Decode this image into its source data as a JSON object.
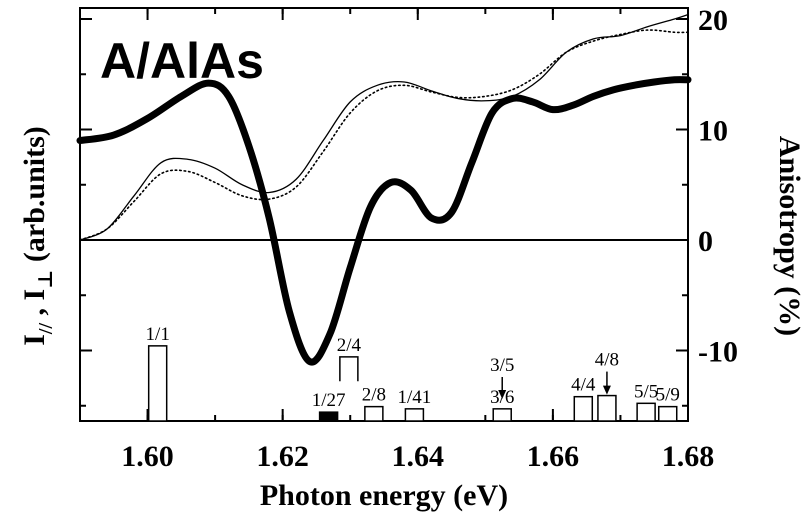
{
  "chart_data": {
    "type": "line",
    "title": "A/AlAs",
    "xlabel": "Photon energy (eV)",
    "ylabel_left_parts": [
      "I",
      "//",
      " , I",
      "⊥",
      " (arb.units)"
    ],
    "ylabel_right": "Anisotropy (%)",
    "xlim": [
      1.59,
      1.68
    ],
    "ylim_right": [
      -18,
      21
    ],
    "x_ticks": [
      1.6,
      1.62,
      1.64,
      1.66,
      1.68
    ],
    "x_tick_labels": [
      "1.60",
      "1.62",
      "1.64",
      "1.66",
      "1.68"
    ],
    "y_ticks_right": [
      -10,
      0,
      10,
      20
    ],
    "y_tick_labels_right": [
      "-10",
      "0",
      "10",
      "20"
    ],
    "series": [
      {
        "style": "thick-solid",
        "axis": "right",
        "x": [
          1.59,
          1.595,
          1.6,
          1.605,
          1.609,
          1.612,
          1.615,
          1.618,
          1.621,
          1.624,
          1.627,
          1.63,
          1.633,
          1.636,
          1.639,
          1.642,
          1.645,
          1.648,
          1.651,
          1.654,
          1.657,
          1.66,
          1.663,
          1.666,
          1.669,
          1.672,
          1.675,
          1.678,
          1.68
        ],
        "y": [
          9.0,
          9.5,
          11.0,
          13.0,
          14.2,
          13.0,
          8.5,
          2.0,
          -6.5,
          -11.0,
          -8.5,
          -2.5,
          3.0,
          5.2,
          4.5,
          2.0,
          2.5,
          7.0,
          11.5,
          12.8,
          12.5,
          11.8,
          12.2,
          13.0,
          13.6,
          14.0,
          14.3,
          14.5,
          14.5
        ]
      },
      {
        "style": "thin-solid",
        "axis": "right",
        "x": [
          1.59,
          1.594,
          1.598,
          1.602,
          1.606,
          1.61,
          1.614,
          1.618,
          1.622,
          1.626,
          1.63,
          1.634,
          1.638,
          1.642,
          1.646,
          1.65,
          1.654,
          1.658,
          1.662,
          1.666,
          1.67,
          1.674,
          1.678,
          1.68
        ],
        "y": [
          0.0,
          1.0,
          4.0,
          7.0,
          7.3,
          6.5,
          5.0,
          4.3,
          5.5,
          9.0,
          12.5,
          14.0,
          14.3,
          13.5,
          12.8,
          12.6,
          13.0,
          14.5,
          17.0,
          18.2,
          18.5,
          19.3,
          20.0,
          20.4
        ]
      },
      {
        "style": "dotted",
        "axis": "right",
        "x": [
          1.59,
          1.594,
          1.598,
          1.602,
          1.606,
          1.61,
          1.614,
          1.618,
          1.622,
          1.626,
          1.63,
          1.634,
          1.638,
          1.642,
          1.646,
          1.65,
          1.654,
          1.658,
          1.662,
          1.666,
          1.67,
          1.674,
          1.678,
          1.68
        ],
        "y": [
          0.0,
          1.0,
          3.5,
          6.0,
          6.2,
          5.2,
          4.0,
          3.7,
          4.8,
          8.0,
          11.5,
          13.5,
          14.0,
          13.4,
          12.9,
          13.0,
          13.6,
          15.0,
          17.0,
          18.0,
          18.6,
          19.0,
          18.8,
          18.8
        ]
      }
    ],
    "transitions": [
      {
        "label": "1/1",
        "x": 1.6015,
        "height": 6.8,
        "filled": false,
        "label_pos": "top"
      },
      {
        "label": "1/27",
        "x": 1.6268,
        "height": 0.8,
        "filled": true,
        "label_pos": "top"
      },
      {
        "label": "2/4",
        "x": 1.6298,
        "height": 2.2,
        "filled": false,
        "label_pos": "top",
        "raised_base": 3.6
      },
      {
        "label": "2/8",
        "x": 1.6335,
        "height": 1.3,
        "filled": false,
        "label_pos": "top"
      },
      {
        "label": "1/41",
        "x": 1.6395,
        "height": 1.1,
        "filled": false,
        "label_pos": "top"
      },
      {
        "label": "3/5",
        "x": 1.6525,
        "height": 0,
        "filled": false,
        "label_pos": "arrow"
      },
      {
        "label": "3/6",
        "x": 1.6525,
        "height": 1.1,
        "filled": false,
        "label_pos": "top"
      },
      {
        "label": "4/4",
        "x": 1.6645,
        "height": 2.2,
        "filled": false,
        "label_pos": "top"
      },
      {
        "label": "4/8",
        "x": 1.668,
        "height": 2.3,
        "filled": false,
        "label_pos": "arrow"
      },
      {
        "label": "5/5",
        "x": 1.6738,
        "height": 1.6,
        "filled": false,
        "label_pos": "top"
      },
      {
        "label": "5/9",
        "x": 1.677,
        "height": 1.3,
        "filled": false,
        "label_pos": "top"
      }
    ],
    "grid": false,
    "legend": "none"
  }
}
